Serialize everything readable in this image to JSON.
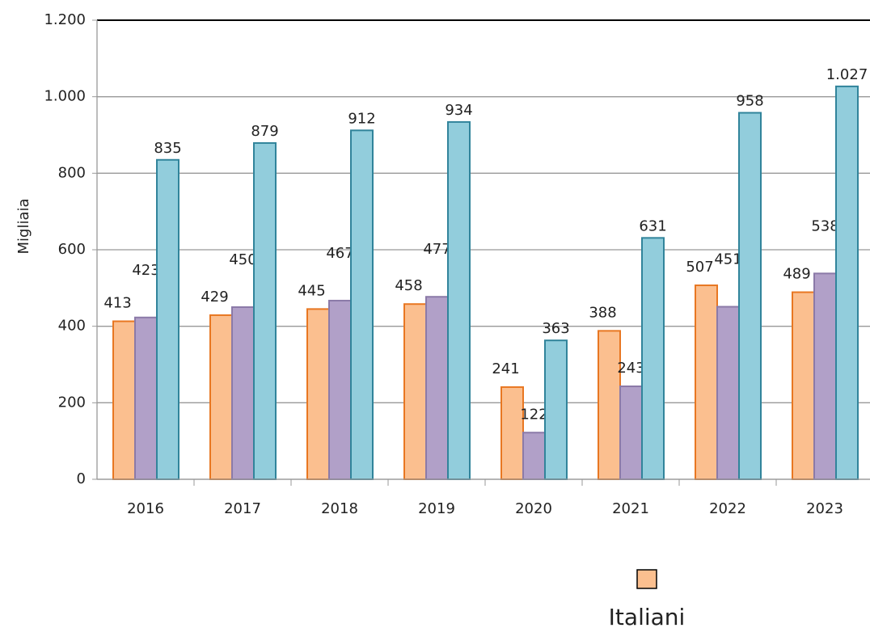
{
  "chart_data": {
    "type": "bar",
    "y_label": "Migliaia",
    "categories": [
      "2016",
      "2017",
      "2018",
      "2019",
      "2020",
      "2021",
      "2022",
      "2023"
    ],
    "series": [
      {
        "name": "Italiani",
        "color": "#fbbf8f",
        "values": [
          413,
          429,
          445,
          458,
          241,
          388,
          507,
          489
        ]
      },
      {
        "color": "#b1a0c8",
        "values": [
          423,
          450,
          467,
          477,
          122,
          243,
          451,
          538
        ]
      },
      {
        "color": "#92cddc",
        "values": [
          835,
          879,
          912,
          934,
          363,
          631,
          958,
          1027
        ],
        "value_labels": [
          "835",
          "879",
          "912",
          "934",
          "363",
          "631",
          "958",
          "1.027"
        ]
      }
    ],
    "ylim": [
      0,
      1200
    ],
    "yticks": [
      0,
      200,
      400,
      600,
      800,
      {
        "value": 1000,
        "label": "1.000"
      },
      {
        "value": 1200,
        "label": "1.200"
      }
    ],
    "grid": true
  }
}
